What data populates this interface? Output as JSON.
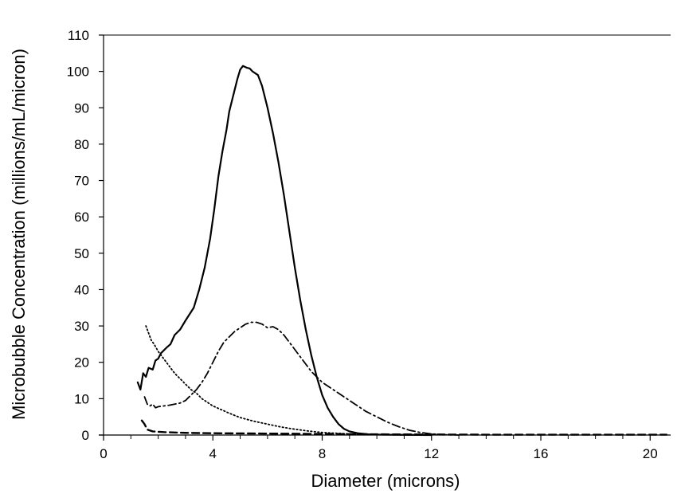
{
  "chart_data": {
    "type": "line",
    "title": "",
    "xlabel": "Diameter  (microns)",
    "ylabel": "Microbubble Concentration (millions/mL/micron)",
    "xlim": [
      0,
      20.75
    ],
    "ylim": [
      0,
      110
    ],
    "x_ticks": [
      0,
      4,
      8,
      12,
      16,
      20
    ],
    "y_ticks": [
      0,
      10,
      20,
      30,
      40,
      50,
      60,
      70,
      80,
      90,
      100,
      110
    ],
    "x_tick_labels": [
      "0",
      "4",
      "8",
      "12",
      "16",
      "20"
    ],
    "y_tick_labels": [
      "0",
      "10",
      "20",
      "30",
      "40",
      "50",
      "60",
      "70",
      "80",
      "90",
      "100",
      "110"
    ],
    "grid": false,
    "legend": "none",
    "series": [
      {
        "style": "solid",
        "color": "#000000",
        "points": [
          [
            1.25,
            14.5
          ],
          [
            1.35,
            12.5
          ],
          [
            1.45,
            17.0
          ],
          [
            1.55,
            16.0
          ],
          [
            1.65,
            18.5
          ],
          [
            1.8,
            18.0
          ],
          [
            1.9,
            20.5
          ],
          [
            2.0,
            21.0
          ],
          [
            2.1,
            22.5
          ],
          [
            2.3,
            24.0
          ],
          [
            2.45,
            25.0
          ],
          [
            2.6,
            27.5
          ],
          [
            2.8,
            29.0
          ],
          [
            3.0,
            31.5
          ],
          [
            3.3,
            35.0
          ],
          [
            3.5,
            40.0
          ],
          [
            3.7,
            46.0
          ],
          [
            3.9,
            54.0
          ],
          [
            4.05,
            62.0
          ],
          [
            4.2,
            71.0
          ],
          [
            4.35,
            78.0
          ],
          [
            4.5,
            84.0
          ],
          [
            4.6,
            89.0
          ],
          [
            4.7,
            92.0
          ],
          [
            4.8,
            95.0
          ],
          [
            4.9,
            98.0
          ],
          [
            5.0,
            100.5
          ],
          [
            5.1,
            101.5
          ],
          [
            5.25,
            101.0
          ],
          [
            5.35,
            100.8
          ],
          [
            5.45,
            100.0
          ],
          [
            5.55,
            99.5
          ],
          [
            5.65,
            99.0
          ],
          [
            5.8,
            96.0
          ],
          [
            6.0,
            90.0
          ],
          [
            6.2,
            83.0
          ],
          [
            6.4,
            75.0
          ],
          [
            6.6,
            66.0
          ],
          [
            6.8,
            56.0
          ],
          [
            7.0,
            46.0
          ],
          [
            7.2,
            37.0
          ],
          [
            7.4,
            29.0
          ],
          [
            7.6,
            22.0
          ],
          [
            7.8,
            16.0
          ],
          [
            8.0,
            11.0
          ],
          [
            8.2,
            7.5
          ],
          [
            8.4,
            5.0
          ],
          [
            8.6,
            3.0
          ],
          [
            8.8,
            1.7
          ],
          [
            9.0,
            1.0
          ],
          [
            9.3,
            0.5
          ],
          [
            9.7,
            0.2
          ],
          [
            10.2,
            0.1
          ],
          [
            11.0,
            0.05
          ],
          [
            12.0,
            0.0
          ]
        ]
      },
      {
        "style": "dashdot",
        "color": "#000000",
        "points": [
          [
            1.5,
            10.5
          ],
          [
            1.6,
            8.5
          ],
          [
            1.7,
            8.0
          ],
          [
            1.8,
            8.5
          ],
          [
            1.9,
            7.5
          ],
          [
            2.0,
            7.8
          ],
          [
            2.2,
            8.0
          ],
          [
            2.4,
            8.2
          ],
          [
            2.6,
            8.5
          ],
          [
            2.8,
            8.8
          ],
          [
            3.0,
            9.5
          ],
          [
            3.2,
            11.0
          ],
          [
            3.4,
            12.5
          ],
          [
            3.6,
            14.5
          ],
          [
            3.8,
            17.0
          ],
          [
            4.0,
            20.0
          ],
          [
            4.2,
            23.0
          ],
          [
            4.4,
            25.5
          ],
          [
            4.6,
            27.0
          ],
          [
            4.8,
            28.5
          ],
          [
            5.0,
            29.5
          ],
          [
            5.2,
            30.5
          ],
          [
            5.4,
            31.0
          ],
          [
            5.6,
            31.0
          ],
          [
            5.8,
            30.5
          ],
          [
            6.0,
            29.5
          ],
          [
            6.2,
            29.8
          ],
          [
            6.4,
            29.0
          ],
          [
            6.6,
            27.5
          ],
          [
            6.8,
            25.5
          ],
          [
            7.0,
            23.5
          ],
          [
            7.2,
            21.5
          ],
          [
            7.4,
            19.5
          ],
          [
            7.6,
            17.5
          ],
          [
            7.8,
            16.0
          ],
          [
            8.0,
            14.5
          ],
          [
            8.4,
            12.5
          ],
          [
            8.8,
            10.5
          ],
          [
            9.2,
            8.5
          ],
          [
            9.6,
            6.5
          ],
          [
            10.0,
            5.0
          ],
          [
            10.4,
            3.5
          ],
          [
            10.8,
            2.3
          ],
          [
            11.2,
            1.3
          ],
          [
            11.6,
            0.7
          ],
          [
            12.0,
            0.3
          ],
          [
            12.5,
            0.1
          ],
          [
            13.0,
            0.0
          ]
        ]
      },
      {
        "style": "dotted",
        "color": "#000000",
        "points": [
          [
            1.55,
            30.0
          ],
          [
            1.65,
            28.0
          ],
          [
            1.75,
            26.0
          ],
          [
            1.85,
            25.0
          ],
          [
            2.0,
            23.0
          ],
          [
            2.2,
            21.0
          ],
          [
            2.4,
            19.0
          ],
          [
            2.6,
            17.0
          ],
          [
            2.8,
            15.5
          ],
          [
            3.0,
            14.0
          ],
          [
            3.2,
            12.5
          ],
          [
            3.4,
            11.5
          ],
          [
            3.6,
            10.0
          ],
          [
            3.8,
            9.0
          ],
          [
            4.0,
            8.0
          ],
          [
            4.3,
            7.0
          ],
          [
            4.6,
            6.0
          ],
          [
            5.0,
            4.8
          ],
          [
            5.5,
            3.8
          ],
          [
            6.0,
            3.0
          ],
          [
            6.5,
            2.2
          ],
          [
            7.0,
            1.6
          ],
          [
            7.5,
            1.1
          ],
          [
            8.0,
            0.7
          ],
          [
            8.5,
            0.5
          ],
          [
            9.0,
            0.3
          ],
          [
            9.5,
            0.2
          ],
          [
            10.0,
            0.1
          ],
          [
            11.0,
            0.05
          ],
          [
            12.0,
            0.0
          ]
        ]
      },
      {
        "style": "dashed",
        "color": "#000000",
        "points": [
          [
            1.4,
            4.0
          ],
          [
            1.5,
            3.0
          ],
          [
            1.6,
            1.5
          ],
          [
            1.8,
            1.0
          ],
          [
            2.2,
            0.8
          ],
          [
            3.0,
            0.6
          ],
          [
            4.0,
            0.5
          ],
          [
            6.0,
            0.4
          ],
          [
            8.0,
            0.3
          ],
          [
            10.0,
            0.2
          ],
          [
            12.0,
            0.15
          ],
          [
            14.0,
            0.1
          ],
          [
            16.0,
            0.1
          ],
          [
            18.0,
            0.1
          ],
          [
            20.0,
            0.1
          ],
          [
            20.6,
            0.1
          ]
        ]
      }
    ]
  }
}
